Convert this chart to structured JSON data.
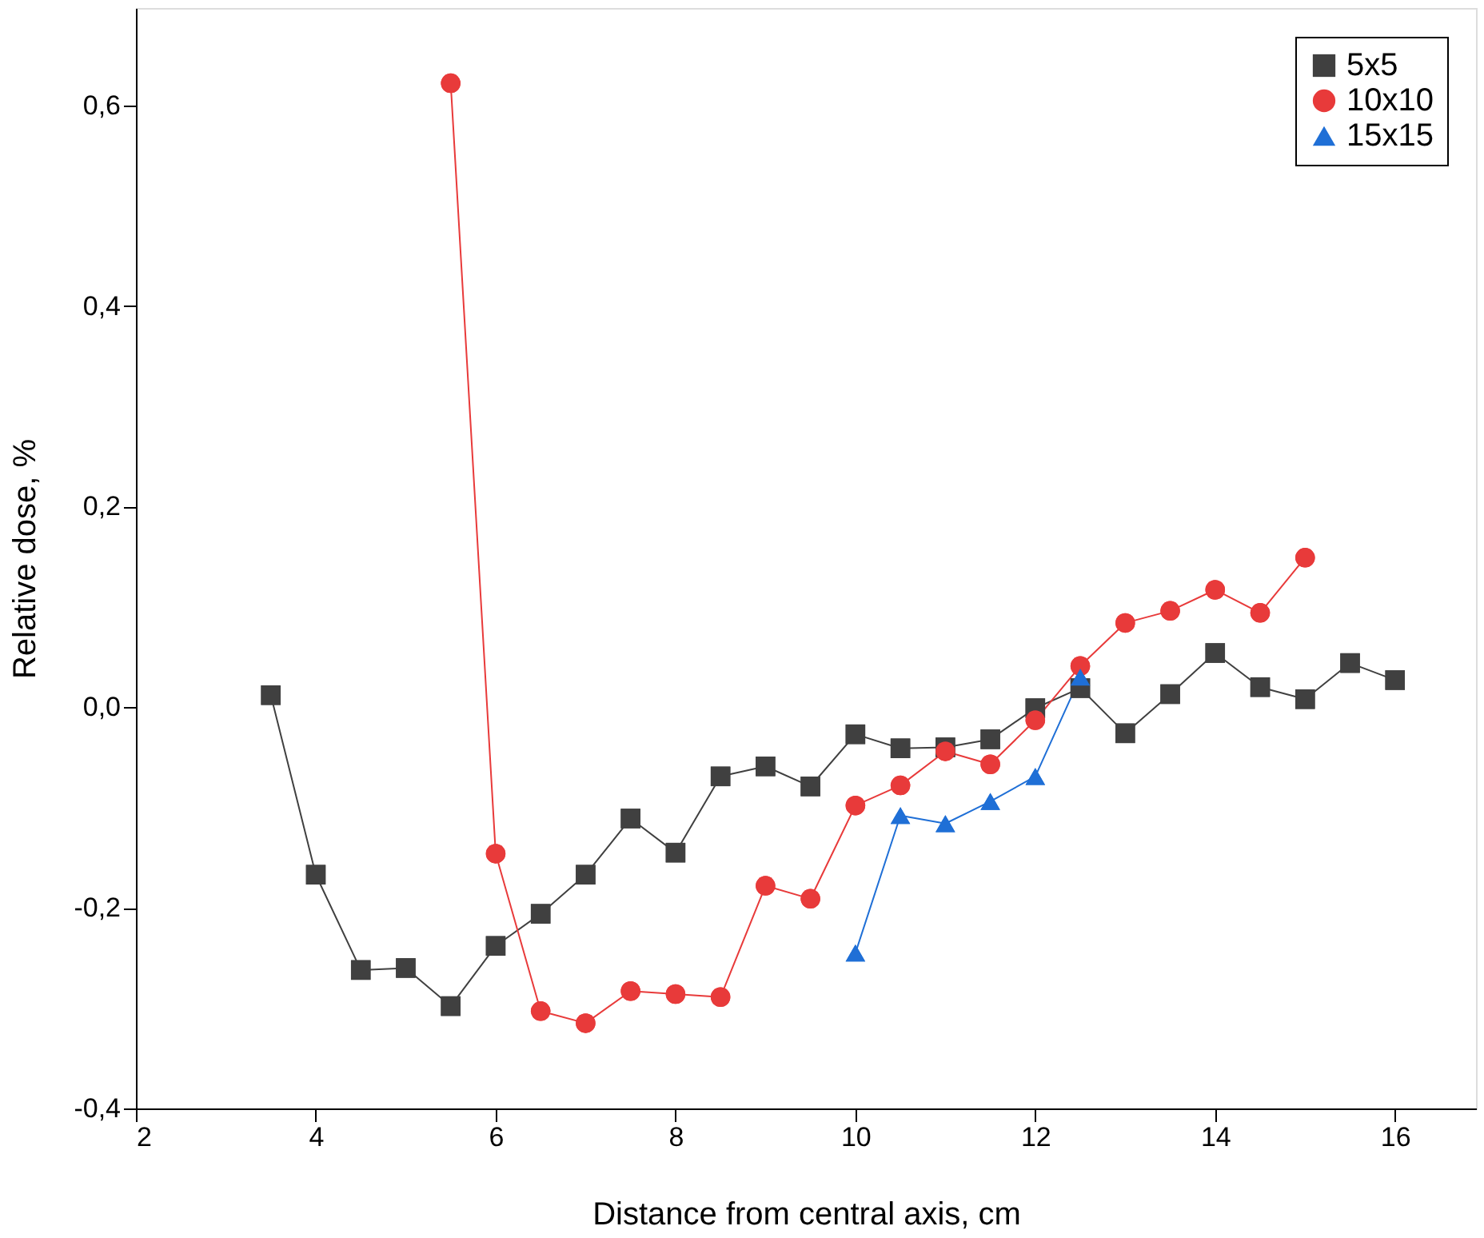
{
  "chart_data": {
    "type": "line",
    "xlabel": "Distance from central axis, cm",
    "ylabel": "Relative dose, %",
    "xlim": [
      2,
      16.9
    ],
    "xticks": [
      2,
      4,
      6,
      8,
      10,
      12,
      14,
      16
    ],
    "ylim": [
      -0.4,
      0.697
    ],
    "yticks": [
      {
        "value": -0.4,
        "label": "-0,4"
      },
      {
        "value": -0.2,
        "label": "-0,2"
      },
      {
        "value": 0,
        "label": "0,0"
      },
      {
        "value": 0.2,
        "label": "0,2"
      },
      {
        "value": 0.4,
        "label": "0,4"
      },
      {
        "value": 0.6,
        "label": "0,6"
      }
    ],
    "grid": false,
    "legend": "top right",
    "line_style": "solid",
    "series": [
      {
        "name": "5x5",
        "color": "#404040",
        "marker": "square",
        "x": [
          3.5,
          4,
          4.5,
          5,
          5.5,
          6,
          6.5,
          7,
          7.5,
          8,
          8.5,
          9,
          9.5,
          10,
          10.5,
          11,
          11.5,
          12,
          12.5,
          13,
          13.5,
          14,
          14.5,
          15,
          15.5,
          16
        ],
        "values": [
          0.012,
          -0.167,
          -0.262,
          -0.26,
          -0.298,
          -0.238,
          -0.206,
          -0.167,
          -0.111,
          -0.145,
          -0.069,
          -0.059,
          -0.079,
          -0.027,
          -0.041,
          -0.04,
          -0.032,
          -0.001,
          0.019,
          -0.026,
          0.013,
          0.054,
          0.02,
          0.008,
          0.044,
          0.027
        ]
      },
      {
        "name": "10x10",
        "color": "#e83a3a",
        "marker": "circle",
        "x": [
          5.5,
          6,
          6.5,
          7,
          7.5,
          8,
          8.5,
          9,
          9.5,
          10,
          10.5,
          11,
          11.5,
          12,
          12.5,
          13,
          13.5,
          14,
          14.5,
          15
        ],
        "values": [
          0.622,
          -0.146,
          -0.303,
          -0.315,
          -0.283,
          -0.286,
          -0.289,
          -0.178,
          -0.191,
          -0.098,
          -0.078,
          -0.044,
          -0.057,
          -0.013,
          0.041,
          0.084,
          0.096,
          0.117,
          0.094,
          0.149
        ]
      },
      {
        "name": "15x15",
        "color": "#1f6fd6",
        "marker": "triangle",
        "x": [
          10,
          10.5,
          11,
          11.5,
          12,
          12.5
        ],
        "values": [
          -0.245,
          -0.108,
          -0.116,
          -0.094,
          -0.069,
          0.03
        ]
      }
    ]
  }
}
